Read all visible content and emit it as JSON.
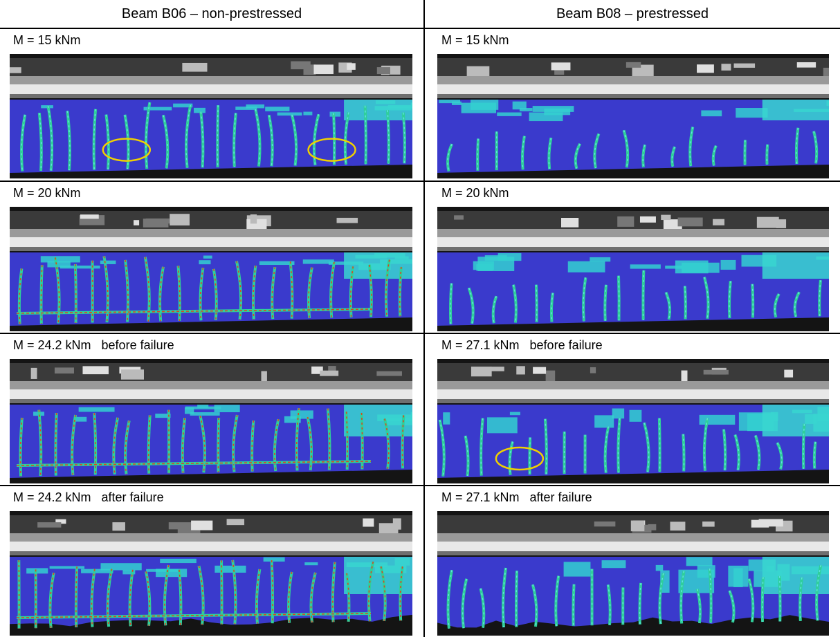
{
  "header": {
    "columns": [
      "Beam B06 – non-prestressed",
      "Beam B08 – prestressed"
    ]
  },
  "rows": [
    {
      "left": {
        "label": "M = 15 kNm"
      },
      "right": {
        "label": "M = 15 kNm"
      }
    },
    {
      "left": {
        "label": "M = 20 kNm"
      },
      "right": {
        "label": "M = 20 kNm"
      }
    },
    {
      "left": {
        "label": "M = 24.2 kNm   before failure"
      },
      "right": {
        "label": "M = 27.1 kNm   before failure"
      }
    },
    {
      "left": {
        "label": "M = 24.2 kNm   after failure"
      },
      "right": {
        "label": "M = 27.1 kNm   after failure"
      }
    }
  ]
}
